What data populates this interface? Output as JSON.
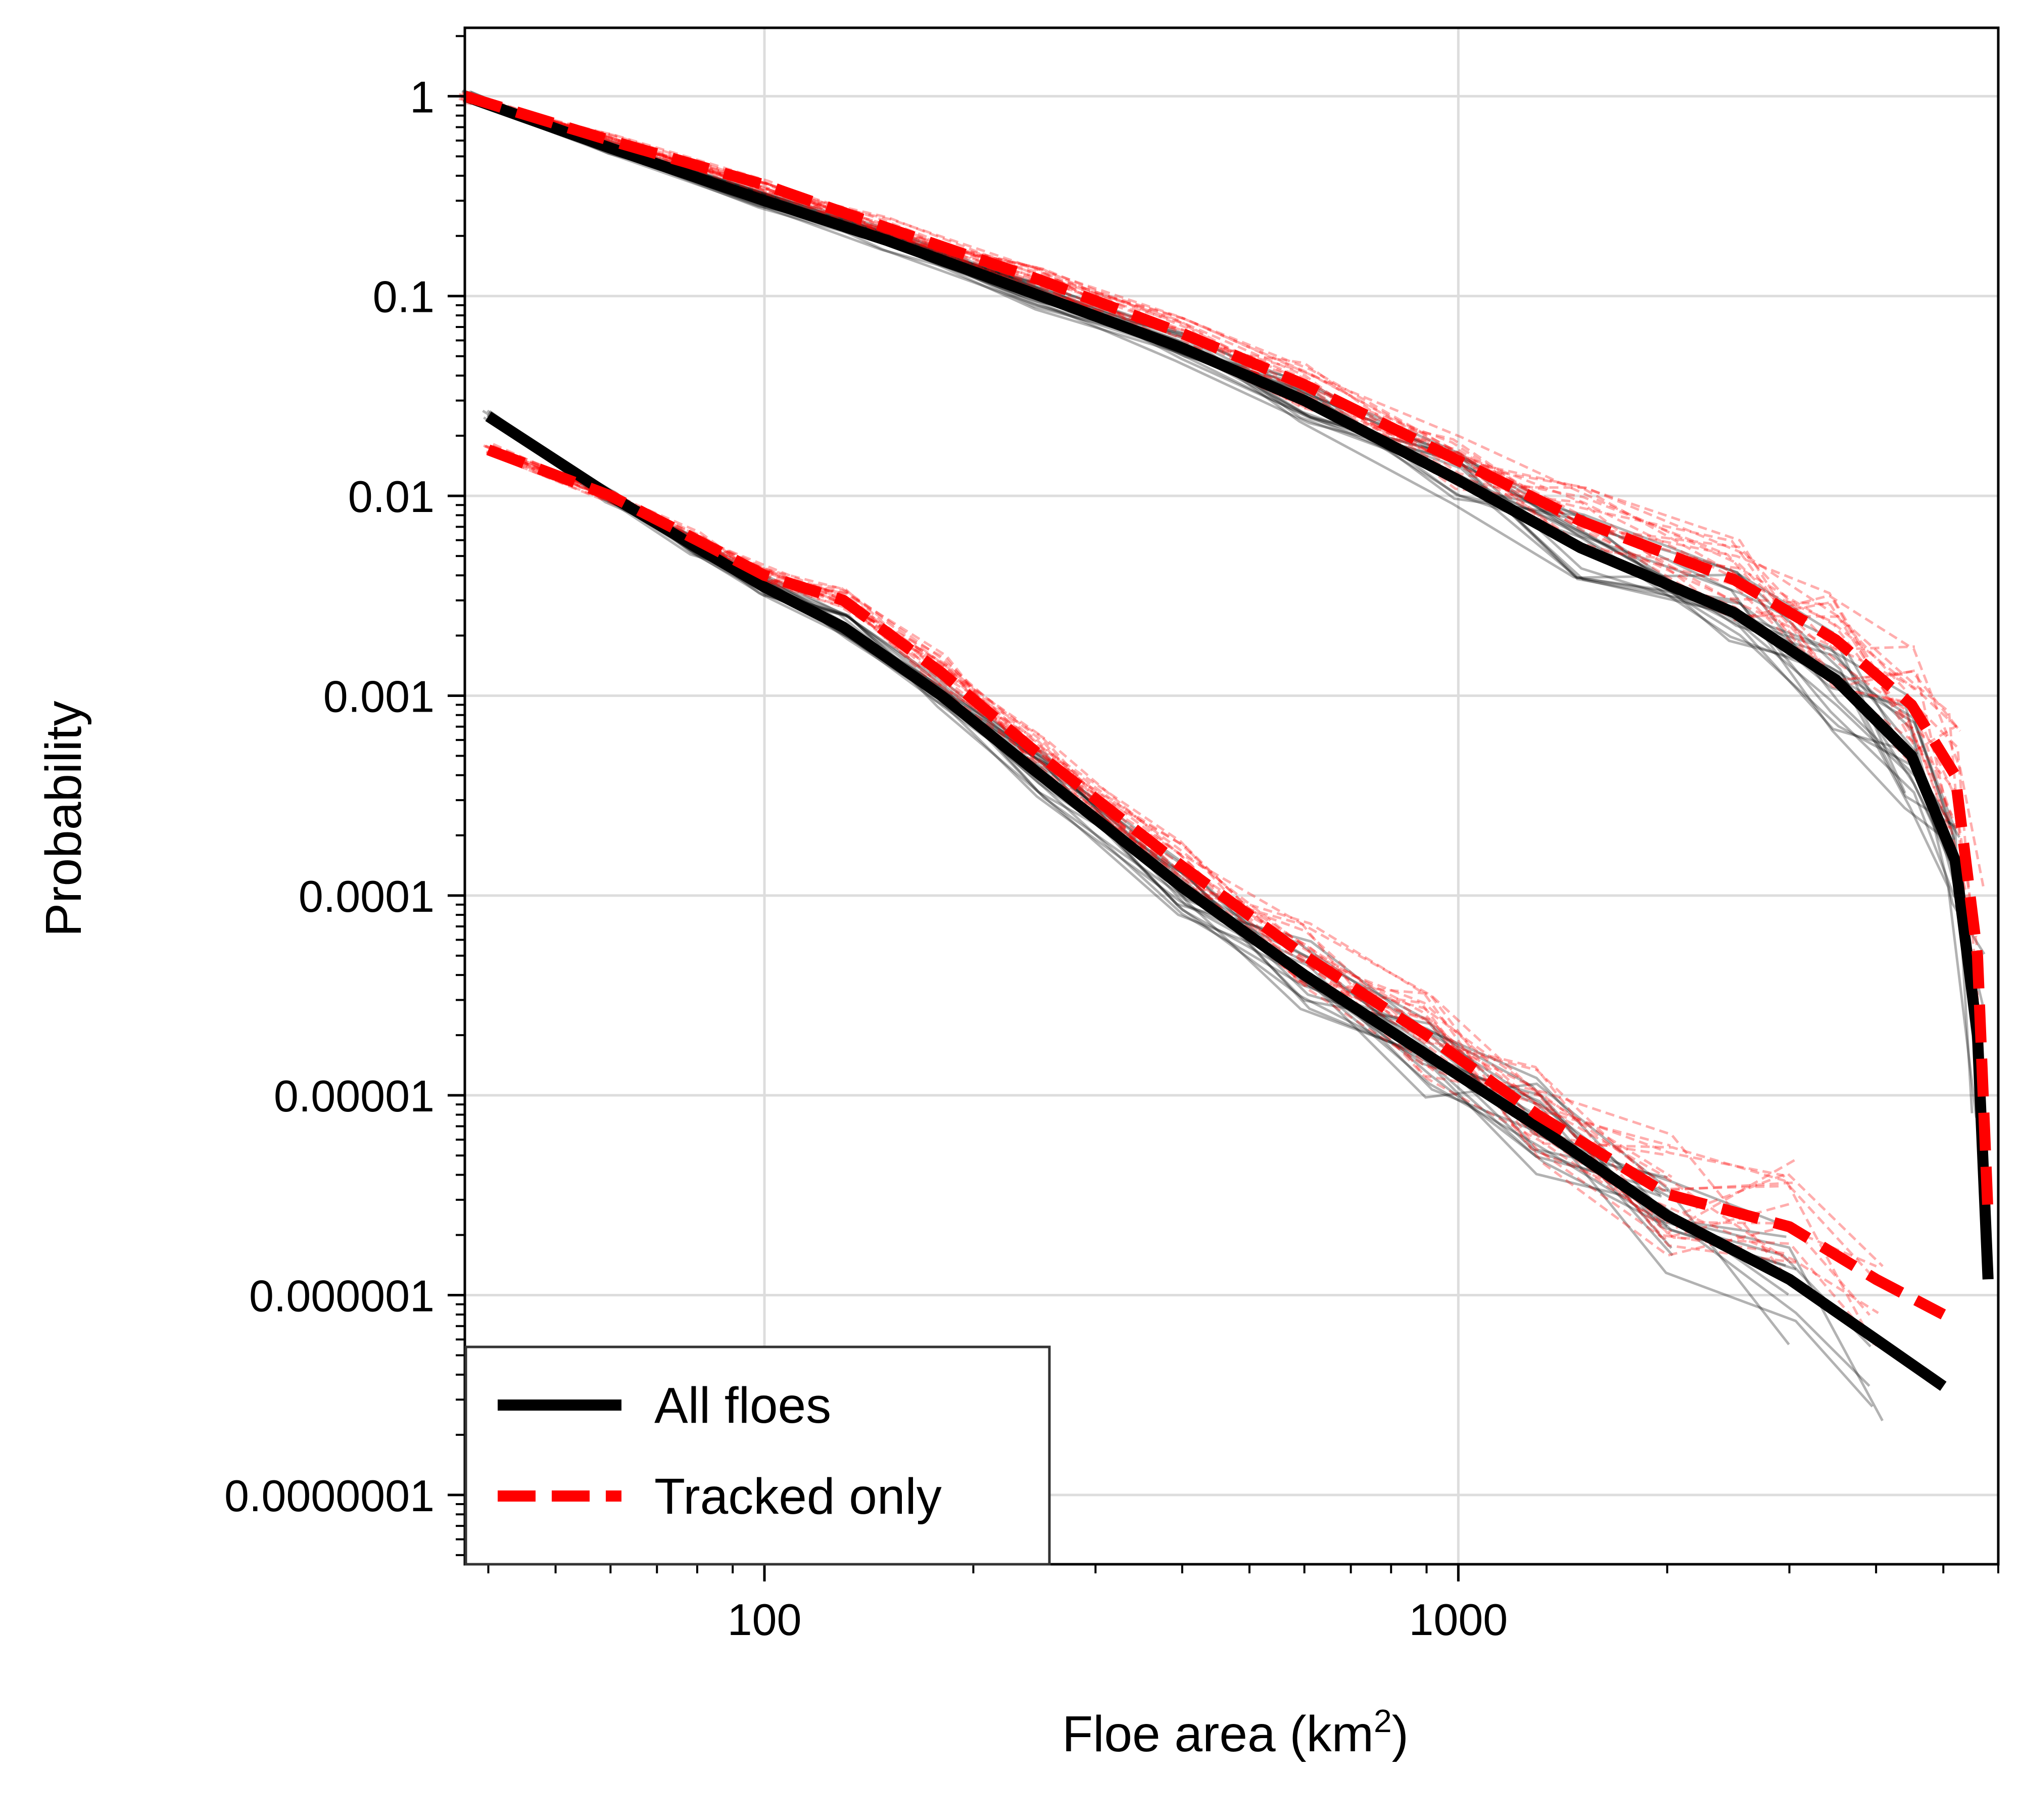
{
  "chart_data": {
    "type": "line",
    "xscale": "log",
    "yscale": "log",
    "xlabel": "Floe area (km",
    "xlabel_sup": "2",
    "xlabel_end": ")",
    "ylabel": "Probability",
    "xlim": [
      37,
      6000
    ],
    "ylim": [
      4.5e-08,
      2.2
    ],
    "x_ticks": [
      {
        "value": 100,
        "label": "100"
      },
      {
        "value": 1000,
        "label": "1000"
      }
    ],
    "y_ticks": [
      {
        "value": 1,
        "label": "1"
      },
      {
        "value": 0.1,
        "label": "0.1"
      },
      {
        "value": 0.01,
        "label": "0.01"
      },
      {
        "value": 0.001,
        "label": "0.001"
      },
      {
        "value": 0.0001,
        "label": "0.0001"
      },
      {
        "value": 1e-05,
        "label": "0.00001"
      },
      {
        "value": 1e-06,
        "label": "0.000001"
      },
      {
        "value": 1e-07,
        "label": "0.0000001"
      }
    ],
    "grid": true,
    "legend_position": "lower-left",
    "legend": [
      {
        "label": "All floes",
        "color": "#000000",
        "style": "solid"
      },
      {
        "label": "Tracked only",
        "color": "#ff0000",
        "style": "dashed"
      }
    ],
    "series": [
      {
        "name": "All floes",
        "curve": "exceedance",
        "color": "#000000",
        "style": "solid",
        "x": [
          37,
          60,
          100,
          150,
          250,
          400,
          600,
          1000,
          1500,
          2500,
          3500,
          4500,
          5200,
          5600,
          5800
        ],
        "y": [
          1.0,
          0.55,
          0.3,
          0.19,
          0.1,
          0.055,
          0.03,
          0.012,
          0.0055,
          0.0026,
          0.0012,
          0.0005,
          0.00015,
          2e-05,
          1.2e-06
        ]
      },
      {
        "name": "Tracked only",
        "curve": "exceedance",
        "color": "#ff0000",
        "style": "dashed",
        "x": [
          37,
          60,
          100,
          150,
          250,
          400,
          600,
          1000,
          1500,
          2500,
          3500,
          4500,
          5200,
          5600,
          5800
        ],
        "y": [
          1.0,
          0.6,
          0.36,
          0.22,
          0.12,
          0.065,
          0.036,
          0.015,
          0.0075,
          0.0038,
          0.0019,
          0.0009,
          0.0004,
          5e-05,
          2.5e-06
        ]
      },
      {
        "name": "All floes",
        "curve": "density",
        "color": "#000000",
        "style": "solid",
        "x": [
          40,
          60,
          80,
          100,
          130,
          180,
          250,
          400,
          600,
          900,
          1300,
          2000,
          3000,
          4000,
          5000
        ],
        "y": [
          0.025,
          0.01,
          0.0055,
          0.0035,
          0.0022,
          0.001,
          0.0004,
          0.00011,
          4e-05,
          1.6e-05,
          7e-06,
          2.5e-06,
          1.2e-06,
          6e-07,
          3.5e-07
        ]
      },
      {
        "name": "Tracked only",
        "curve": "density",
        "color": "#ff0000",
        "style": "dashed",
        "x": [
          40,
          60,
          80,
          100,
          130,
          180,
          250,
          400,
          600,
          900,
          1300,
          2000,
          3000,
          4000,
          5000
        ],
        "y": [
          0.017,
          0.01,
          0.006,
          0.004,
          0.003,
          0.0013,
          0.0005,
          0.00014,
          5e-05,
          2e-05,
          8e-06,
          3.2e-06,
          2.2e-06,
          1.2e-06,
          8e-07
        ]
      }
    ]
  }
}
